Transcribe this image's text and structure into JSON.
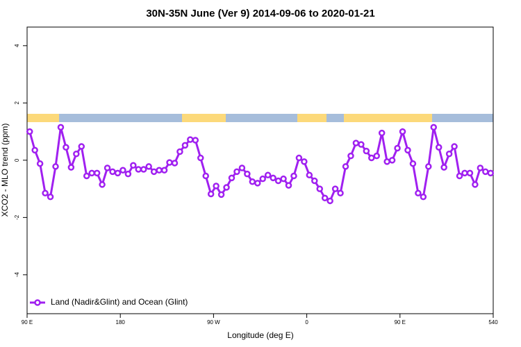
{
  "chart_data": {
    "type": "line",
    "title": "30N-35N June (Ver 9)   2014-09-06 to 2020-01-21",
    "x_label": "Longitude (deg E)",
    "y_label": "XCO2 - MLO trend (ppm)",
    "xlim": [
      90,
      540
    ],
    "ylim": [
      -5.36,
      4.65
    ],
    "xticks": [
      {
        "value": 90,
        "label": "90 E"
      },
      180,
      {
        "value": 270,
        "label": "90 W"
      },
      {
        "value": 360,
        "label": "0"
      },
      {
        "value": 450,
        "label": "90 E"
      },
      540
    ],
    "yticks": [
      -4,
      -2,
      0,
      2,
      4
    ],
    "legend": "bottom-left",
    "series": [
      {
        "name": "Land (Nadir&Glint) and Ocean (Glint)",
        "color": "#a020f0",
        "x": [
          92.5,
          97.5,
          102.5,
          107.5,
          112.5,
          117.5,
          122.5,
          127.5,
          132.5,
          137.5,
          142.5,
          147.5,
          152.5,
          157.5,
          162.5,
          167.5,
          172.5,
          177.5,
          182.5,
          187.5,
          192.5,
          197.5,
          202.5,
          207.5,
          212.5,
          217.5,
          222.5,
          227.5,
          232.5,
          237.5,
          242.5,
          247.5,
          252.5,
          257.5,
          262.5,
          267.5,
          272.5,
          277.5,
          282.5,
          287.5,
          292.5,
          297.5,
          302.5,
          307.5,
          312.5,
          317.5,
          322.5,
          327.5,
          332.5,
          337.5,
          342.5,
          347.5,
          352.5,
          357.5,
          362.5,
          367.5,
          372.5,
          377.5,
          382.5,
          387.5,
          392.5,
          397.5,
          402.5,
          407.5,
          412.5,
          417.5,
          422.5,
          427.5,
          432.5,
          437.5,
          442.5,
          447.5,
          452.5,
          457.5,
          462.5,
          467.5,
          472.5,
          477.5,
          482.5,
          487.5,
          492.5,
          497.5,
          502.5,
          507.5,
          512.5,
          517.5,
          522.5,
          527.5,
          532.5,
          537.5
        ],
        "values": [
          1.0,
          0.35,
          -0.12,
          -1.15,
          -1.28,
          -0.22,
          1.15,
          0.45,
          -0.25,
          0.22,
          0.48,
          -0.55,
          -0.45,
          -0.45,
          -0.85,
          -0.27,
          -0.4,
          -0.45,
          -0.35,
          -0.48,
          -0.18,
          -0.32,
          -0.32,
          -0.22,
          -0.4,
          -0.35,
          -0.35,
          -0.08,
          -0.1,
          0.3,
          0.52,
          0.72,
          0.7,
          0.08,
          -0.55,
          -1.18,
          -0.9,
          -1.2,
          -0.95,
          -0.62,
          -0.4,
          -0.27,
          -0.48,
          -0.75,
          -0.8,
          -0.65,
          -0.52,
          -0.62,
          -0.72,
          -0.65,
          -0.88,
          -0.55,
          0.08,
          -0.05,
          -0.52,
          -0.72,
          -1.0,
          -1.32,
          -1.42,
          -1.0,
          -1.15,
          -0.22,
          0.15,
          0.6,
          0.55,
          0.32,
          0.08,
          0.15,
          0.95,
          -0.05,
          0.0,
          0.42,
          1.0,
          0.35,
          -0.12,
          -1.15,
          -1.28,
          -0.22,
          1.15,
          0.45,
          -0.25,
          0.22,
          0.48,
          -0.55,
          -0.45,
          -0.45,
          -0.85,
          -0.27,
          -0.4,
          -0.45
        ]
      }
    ]
  }
}
